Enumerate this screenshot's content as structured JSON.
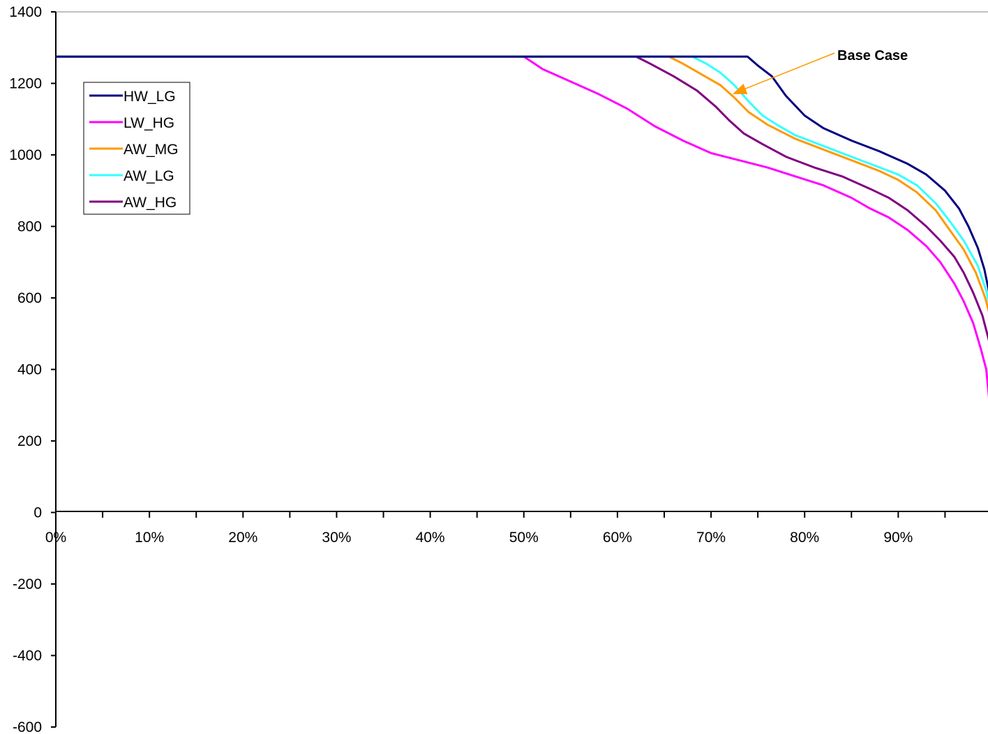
{
  "chart_data": {
    "type": "line",
    "title": "",
    "xlabel": "",
    "ylabel": "",
    "xlim": [
      0,
      100
    ],
    "ylim": [
      -600,
      1400
    ],
    "x_ticks": [
      {
        "value": 0,
        "label": "0%"
      },
      {
        "value": 10,
        "label": "10%"
      },
      {
        "value": 20,
        "label": "20%"
      },
      {
        "value": 30,
        "label": "30%"
      },
      {
        "value": 40,
        "label": "40%"
      },
      {
        "value": 50,
        "label": "50%"
      },
      {
        "value": 60,
        "label": "60%"
      },
      {
        "value": 70,
        "label": "70%"
      },
      {
        "value": 80,
        "label": "80%"
      },
      {
        "value": 90,
        "label": "90%"
      }
    ],
    "y_ticks": [
      {
        "value": 1400,
        "label": "1400"
      },
      {
        "value": 1200,
        "label": "1200"
      },
      {
        "value": 1000,
        "label": "1000"
      },
      {
        "value": 800,
        "label": "800"
      },
      {
        "value": 600,
        "label": "600"
      },
      {
        "value": 400,
        "label": "400"
      },
      {
        "value": 200,
        "label": "200"
      },
      {
        "value": 0,
        "label": "0"
      },
      {
        "value": -200,
        "label": "-200"
      },
      {
        "value": -400,
        "label": "-400"
      },
      {
        "value": -600,
        "label": "-600"
      }
    ],
    "grid": false,
    "legend_position": "top-left",
    "series": [
      {
        "name": "HW_LG",
        "color": "#000080",
        "x": [
          0,
          73.9,
          75,
          76.5,
          78,
          80,
          82,
          85,
          88,
          91,
          93,
          95,
          96.5,
          97.5,
          98.5,
          99.2,
          99.6,
          100
        ],
        "y": [
          1275,
          1275,
          1250,
          1220,
          1165,
          1110,
          1075,
          1040,
          1010,
          975,
          945,
          900,
          850,
          800,
          740,
          680,
          630,
          580
        ]
      },
      {
        "name": "LW_HG",
        "color": "#ff00ff",
        "x": [
          0,
          50,
          52,
          55,
          58,
          61,
          64,
          67,
          70,
          73,
          76,
          79,
          82,
          85,
          87,
          89,
          91,
          93,
          94.5,
          96,
          97,
          98,
          98.8,
          99.4,
          99.7,
          100
        ],
        "y": [
          1275,
          1275,
          1240,
          1205,
          1170,
          1130,
          1080,
          1040,
          1005,
          985,
          965,
          940,
          915,
          880,
          850,
          825,
          790,
          745,
          700,
          640,
          590,
          530,
          460,
          400,
          320,
          230
        ]
      },
      {
        "name": "AW_MG",
        "color": "#ff9900",
        "x": [
          0,
          65.5,
          67,
          69,
          71,
          72.5,
          74,
          76,
          79,
          82,
          85,
          88,
          90,
          92,
          94,
          95.5,
          97,
          98.3,
          99.3,
          100
        ],
        "y": [
          1275,
          1275,
          1255,
          1225,
          1195,
          1160,
          1120,
          1085,
          1045,
          1015,
          985,
          955,
          930,
          895,
          845,
          790,
          735,
          670,
          600,
          530
        ]
      },
      {
        "name": "AW_LG",
        "color": "#33ffff",
        "x": [
          0,
          62,
          68,
          69.5,
          71,
          72.5,
          74,
          75.5,
          77,
          79,
          82,
          85,
          88,
          90,
          92,
          94,
          95.5,
          97,
          98.5,
          99.4,
          100
        ],
        "y": [
          1275,
          1275,
          1275,
          1255,
          1230,
          1195,
          1150,
          1110,
          1085,
          1055,
          1025,
          995,
          965,
          945,
          915,
          865,
          815,
          760,
          690,
          620,
          550
        ]
      },
      {
        "name": "AW_HG",
        "color": "#800080",
        "x": [
          0,
          62,
          63.5,
          66,
          68.5,
          70.5,
          72,
          73.5,
          75.5,
          78,
          81,
          84,
          87,
          89,
          91,
          93,
          94.5,
          96,
          97,
          98,
          99,
          100
        ],
        "y": [
          1275,
          1275,
          1255,
          1220,
          1180,
          1135,
          1095,
          1060,
          1030,
          995,
          965,
          940,
          905,
          880,
          845,
          800,
          760,
          715,
          670,
          615,
          550,
          450
        ]
      }
    ],
    "annotations": [
      {
        "text": "Base Case",
        "color": "#ff9900",
        "target_x": 72.3,
        "target_y": 1170
      }
    ]
  }
}
